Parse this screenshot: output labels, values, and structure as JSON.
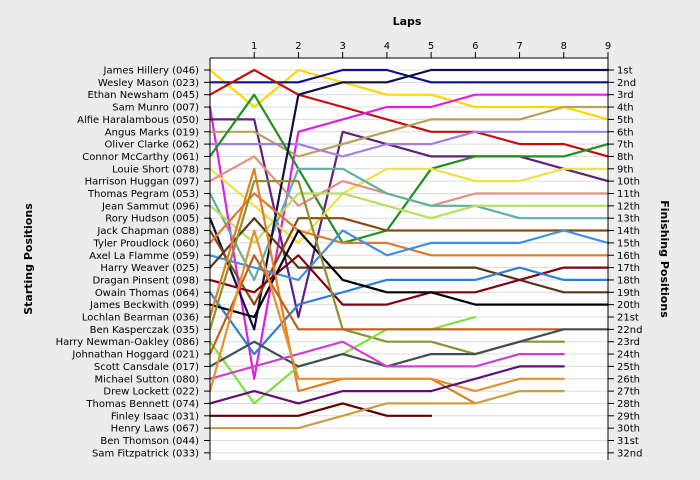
{
  "chart_data": {
    "type": "line",
    "title": "Laps",
    "ylabel_left": "Starting Positions",
    "ylabel_right": "Finishing Positions",
    "x_ticks": [
      "1",
      "2",
      "3",
      "4",
      "5",
      "6",
      "7",
      "8",
      "9"
    ],
    "right_ticks": [
      "1st",
      "2nd",
      "3rd",
      "4th",
      "5th",
      "6th",
      "7th",
      "8th",
      "9th",
      "10th",
      "11th",
      "12th",
      "13th",
      "14th",
      "15th",
      "16th",
      "17th",
      "18th",
      "19th",
      "20th",
      "21st",
      "22nd",
      "23rd",
      "24th",
      "25th",
      "26th",
      "27th",
      "28th",
      "29th",
      "30th",
      "31st",
      "32nd"
    ],
    "xlim": [
      0,
      9
    ],
    "ylim": [
      1,
      32
    ],
    "grid": true,
    "series": [
      {
        "name": "James Hillery (046)",
        "color": "#ffd700",
        "values": [
          4,
          1,
          2,
          3,
          3,
          4,
          4,
          4,
          5
        ]
      },
      {
        "name": "Wesley Mason (023)",
        "color": "#10108a",
        "values": [
          2,
          2,
          1,
          1,
          2,
          2,
          2,
          2,
          2
        ]
      },
      {
        "name": "Ethan Newsham (045)",
        "color": "#c01010",
        "values": [
          1,
          3,
          4,
          5,
          6,
          6,
          7,
          7,
          8
        ]
      },
      {
        "name": "Sam Munro (007)",
        "color": "#e020e0",
        "values": [
          26,
          6,
          5,
          4,
          4,
          3,
          3,
          3,
          3
        ]
      },
      {
        "name": "Alfie Haralambous (050)",
        "color": "#602080",
        "values": [
          5,
          21,
          6,
          7,
          8,
          8,
          8,
          9,
          10
        ]
      },
      {
        "name": "Angus Marks (019)",
        "color": "#b8a060",
        "values": [
          6,
          8,
          7,
          6,
          5,
          5,
          5,
          4,
          4
        ]
      },
      {
        "name": "Oliver Clarke (062)",
        "color": "#a080e0",
        "values": [
          7,
          7,
          8,
          7,
          7,
          6,
          6,
          6,
          6
        ]
      },
      {
        "name": "Connor McCarthy (061)",
        "color": "#209020",
        "values": [
          3,
          9,
          15,
          14,
          9,
          8,
          8,
          8,
          7
        ]
      },
      {
        "name": "Louie Short (078)",
        "color": "#f0e040",
        "values": [
          12,
          15,
          11,
          9,
          9,
          10,
          10,
          9,
          9
        ]
      },
      {
        "name": "Harrison Huggan (097)",
        "color": "#e09080",
        "values": [
          8,
          12,
          10,
          11,
          12,
          11,
          11,
          11,
          11
        ]
      },
      {
        "name": "Thomas Pegram (053)",
        "color": "#60b0a0",
        "values": [
          18,
          9,
          9,
          11,
          12,
          12,
          13,
          13,
          13
        ]
      },
      {
        "name": "Jean Sammut (096)",
        "color": "#b8e060",
        "values": [
          15,
          11,
          11,
          12,
          13,
          12,
          12,
          12,
          12
        ]
      },
      {
        "name": "Rory Hudson (005)",
        "color": "#101040",
        "values": [
          22,
          3,
          2,
          2,
          1,
          1,
          1,
          1,
          1
        ]
      },
      {
        "name": "Jack Chapman (088)",
        "color": "#8a4a10",
        "values": [
          20,
          13,
          13,
          14,
          14,
          14,
          14,
          14,
          14
        ]
      },
      {
        "name": "Tyler Proudlock (060)",
        "color": "#e07830",
        "values": [
          11,
          14,
          15,
          15,
          16,
          16,
          16,
          16,
          16
        ]
      },
      {
        "name": "Axel La Flamme (059)",
        "color": "#4090e0",
        "values": [
          17,
          18,
          14,
          16,
          15,
          15,
          15,
          14,
          15
        ]
      },
      {
        "name": "Harry Weaver (025)",
        "color": "#583818",
        "values": [
          13,
          17,
          17,
          17,
          17,
          17,
          18,
          19,
          19
        ]
      },
      {
        "name": "Dragan Pinsent (098)",
        "color": "#800010",
        "values": [
          19,
          16,
          20,
          20,
          19,
          19,
          18,
          17,
          17
        ]
      },
      {
        "name": "Owain Thomas (064)",
        "color": "#3080d0",
        "values": [
          24,
          20,
          19,
          18,
          18,
          18,
          17,
          18,
          18
        ]
      },
      {
        "name": "James Beckwith (099)",
        "color": "#000000",
        "values": [
          21,
          14,
          18,
          19,
          19,
          20,
          20,
          20,
          20
        ]
      },
      {
        "name": "Lochlan Bearman (036)",
        "color": "#e08020",
        "values": [
          9,
          27,
          26,
          26,
          26,
          28
        ]
      },
      {
        "name": "Ben Kasperczak (035)",
        "color": "#909030",
        "values": [
          10,
          10,
          22,
          23,
          23,
          24,
          23,
          23
        ]
      },
      {
        "name": "Harry Newman-Oakley (086)",
        "color": "#80e040",
        "values": [
          28,
          25,
          24,
          22,
          22,
          21
        ]
      },
      {
        "name": "Johnathan Hoggard (021)",
        "color": "#c06020",
        "values": [
          16,
          22,
          22,
          22,
          22,
          22,
          22,
          22
        ]
      },
      {
        "name": "Scott Cansdale (017)",
        "color": "#405050",
        "values": [
          23,
          25,
          24,
          25,
          24,
          24,
          23,
          22,
          22
        ]
      },
      {
        "name": "Michael Sutton (080)",
        "color": "#d040d0",
        "values": [
          25,
          24,
          23,
          25,
          25,
          25,
          24,
          24
        ]
      },
      {
        "name": "Drew Lockett (022)",
        "color": "#e89030",
        "values": [
          14,
          26,
          26,
          26,
          26,
          27,
          26,
          26
        ]
      },
      {
        "name": "Thomas Bennett (074)",
        "color": "#601070",
        "values": [
          27,
          28,
          27,
          27,
          27,
          26,
          25,
          25
        ]
      },
      {
        "name": "Finley Isaac (031)",
        "color": "#600000",
        "values": [
          29,
          29,
          28,
          29,
          29
        ]
      },
      {
        "name": "Henry Laws (067)",
        "color": "#c8a040",
        "values": [
          30,
          30,
          29,
          28,
          28,
          28,
          27,
          27
        ]
      }
    ],
    "left_labels": [
      "James Hillery (046)",
      "Wesley Mason (023)",
      "Ethan Newsham (045)",
      "Sam Munro (007)",
      "Alfie Haralambous (050)",
      "Angus Marks (019)",
      "Oliver Clarke (062)",
      "Connor McCarthy (061)",
      "Louie Short (078)",
      "Harrison Huggan (097)",
      "Thomas Pegram (053)",
      "Jean Sammut (096)",
      "Rory Hudson (005)",
      "Jack Chapman (088)",
      "Tyler Proudlock (060)",
      "Axel La Flamme (059)",
      "Harry Weaver (025)",
      "Dragan Pinsent (098)",
      "Owain Thomas (064)",
      "James Beckwith (099)",
      "Lochlan Bearman (036)",
      "Ben Kasperczak (035)",
      "Harry Newman-Oakley (086)",
      "Johnathan Hoggard (021)",
      "Scott Cansdale (017)",
      "Michael Sutton (080)",
      "Drew Lockett (022)",
      "Thomas Bennett (074)",
      "Finley Isaac (031)",
      "Henry Laws (067)",
      "Ben Thomson (044)",
      "Sam Fitzpatrick (033)"
    ]
  }
}
